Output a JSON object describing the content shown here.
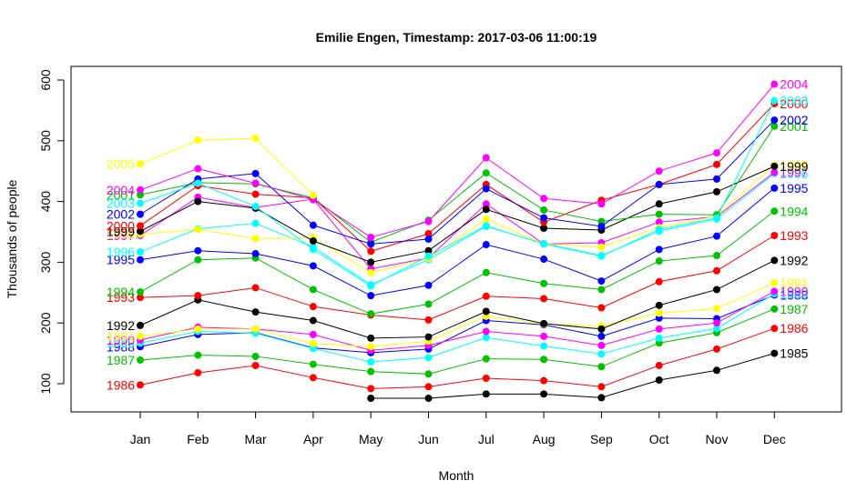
{
  "chart_data": {
    "type": "line",
    "title": "Emilie Engen, Timestamp: 2017-03-06 11:00:19",
    "xlabel": "Month",
    "ylabel": "Thousands of people",
    "categories": [
      "Jan",
      "Feb",
      "Mar",
      "Apr",
      "May",
      "Jun",
      "Jul",
      "Aug",
      "Sep",
      "Oct",
      "Nov",
      "Dec"
    ],
    "ylim": [
      55,
      610
    ],
    "yticks": [
      100,
      200,
      300,
      400,
      500,
      600
    ],
    "grid": false,
    "series": [
      {
        "name": "1985",
        "color": "#000000",
        "label_side": "right",
        "values": [
          null,
          null,
          null,
          null,
          76,
          76,
          83,
          83,
          77,
          106,
          122,
          150
        ]
      },
      {
        "name": "1986",
        "color": "#ff0000",
        "label_side": "both",
        "values": [
          98,
          118,
          130,
          110,
          92,
          95,
          109,
          105,
          95,
          130,
          157,
          191
        ]
      },
      {
        "name": "1987",
        "color": "#00c000",
        "label_side": "both",
        "values": [
          139,
          147,
          145,
          132,
          120,
          116,
          141,
          140,
          128,
          167,
          184,
          223
        ]
      },
      {
        "name": "1988",
        "color": "#0000ff",
        "label_side": "both",
        "values": [
          161,
          181,
          184,
          159,
          151,
          157,
          204,
          197,
          178,
          208,
          207,
          246
        ]
      },
      {
        "name": "1989",
        "color": "#00ffff",
        "label_side": "both",
        "values": [
          167,
          186,
          183,
          158,
          136,
          143,
          176,
          162,
          149,
          175,
          191,
          248
        ]
      },
      {
        "name": "1990",
        "color": "#ff00ff",
        "label_side": "both",
        "values": [
          172,
          193,
          190,
          181,
          155,
          163,
          186,
          178,
          163,
          190,
          200,
          252
        ]
      },
      {
        "name": "1991",
        "color": "#ffff00",
        "label_side": "both",
        "values": [
          178,
          190,
          190,
          166,
          161,
          170,
          211,
          198,
          195,
          216,
          224,
          266
        ]
      },
      {
        "name": "1992",
        "color": "#000000",
        "label_side": "both",
        "values": [
          196,
          238,
          218,
          204,
          175,
          177,
          219,
          199,
          190,
          229,
          255,
          303
        ]
      },
      {
        "name": "1993",
        "color": "#ff0000",
        "label_side": "both",
        "values": [
          242,
          245,
          258,
          227,
          213,
          205,
          244,
          240,
          225,
          268,
          286,
          344
        ]
      },
      {
        "name": "1994",
        "color": "#00c000",
        "label_side": "both",
        "values": [
          251,
          304,
          307,
          255,
          215,
          231,
          283,
          265,
          255,
          302,
          311,
          384
        ]
      },
      {
        "name": "1995",
        "color": "#0000ff",
        "label_side": "both",
        "values": [
          304,
          319,
          314,
          294,
          245,
          262,
          329,
          305,
          269,
          321,
          343,
          422
        ]
      },
      {
        "name": "1996",
        "color": "#00ffff",
        "label_side": "both",
        "values": [
          317,
          355,
          364,
          325,
          263,
          304,
          359,
          331,
          311,
          351,
          371,
          446
        ]
      },
      {
        "name": "1997",
        "color": "#ff00ff",
        "label_side": "both",
        "values": [
          344,
          407,
          390,
          404,
          289,
          307,
          396,
          330,
          332,
          366,
          375,
          448
        ]
      },
      {
        "name": "1998",
        "color": "#ffff00",
        "label_side": "both",
        "values": [
          346,
          354,
          339,
          340,
          283,
          306,
          371,
          330,
          325,
          357,
          376,
          460
        ]
      },
      {
        "name": "1999",
        "color": "#000000",
        "label_side": "both",
        "values": [
          351,
          400,
          389,
          335,
          300,
          319,
          387,
          356,
          353,
          396,
          416,
          458
        ]
      },
      {
        "name": "2000",
        "color": "#ff0000",
        "label_side": "both",
        "values": [
          360,
          426,
          412,
          406,
          318,
          347,
          428,
          366,
          402,
          428,
          461,
          561
        ]
      },
      {
        "name": "2001",
        "color": "#00c000",
        "label_side": "both",
        "values": [
          411,
          431,
          429,
          406,
          333,
          369,
          447,
          386,
          367,
          379,
          378,
          524
        ]
      },
      {
        "name": "2002",
        "color": "#0000ff",
        "label_side": "both",
        "values": [
          379,
          437,
          446,
          361,
          330,
          338,
          421,
          373,
          359,
          428,
          437,
          534
        ]
      },
      {
        "name": "2003",
        "color": "#00ffff",
        "label_side": "both",
        "values": [
          397,
          430,
          392,
          321,
          261,
          310,
          360,
          330,
          310,
          354,
          373,
          566
        ]
      },
      {
        "name": "2004",
        "color": "#ff00ff",
        "label_side": "both",
        "values": [
          419,
          454,
          430,
          403,
          341,
          367,
          472,
          405,
          396,
          450,
          480,
          593
        ]
      },
      {
        "name": "2005",
        "color": "#ffff00",
        "label_side": "left",
        "values": [
          462,
          501,
          504,
          410,
          null,
          null,
          null,
          null,
          null,
          null,
          null,
          null
        ]
      }
    ]
  }
}
